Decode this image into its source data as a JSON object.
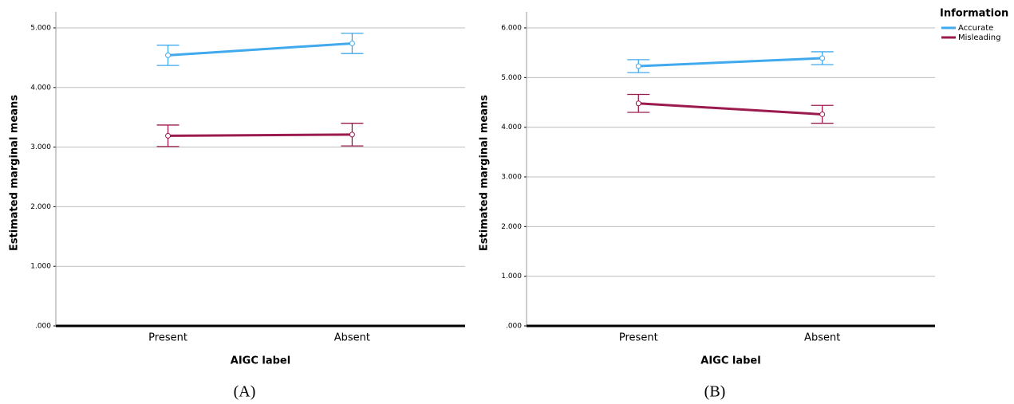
{
  "chart_data": [
    {
      "type": "line",
      "caption": "(A)",
      "x_label": "AIGC label",
      "y_label": "Estimated marginal means",
      "categories": [
        "Present",
        "Absent"
      ],
      "ylim": [
        0,
        5
      ],
      "yticks": [
        {
          "value": 0,
          "label": ".000"
        },
        {
          "value": 1,
          "label": "1.000"
        },
        {
          "value": 2,
          "label": "2.000"
        },
        {
          "value": 3,
          "label": "3.000"
        },
        {
          "value": 4,
          "label": "4.000"
        },
        {
          "value": 5,
          "label": "5.000"
        }
      ],
      "grid": true,
      "series": [
        {
          "name": "Accurate",
          "color": "#41a9ee",
          "values": [
            4.54,
            4.74
          ],
          "errors": [
            0.17,
            0.17
          ]
        },
        {
          "name": "Misleading",
          "color": "#9b1b4e",
          "values": [
            3.19,
            3.21
          ],
          "errors": [
            0.18,
            0.19
          ]
        }
      ]
    },
    {
      "type": "line",
      "caption": "(B)",
      "x_label": "AIGC label",
      "y_label": "Estimated marginal means",
      "categories": [
        "Present",
        "Absent"
      ],
      "ylim": [
        0,
        6
      ],
      "yticks": [
        {
          "value": 0,
          "label": ".000"
        },
        {
          "value": 1,
          "label": "1.000"
        },
        {
          "value": 2,
          "label": "2.000"
        },
        {
          "value": 3,
          "label": "3.000"
        },
        {
          "value": 4,
          "label": "4.000"
        },
        {
          "value": 5,
          "label": "5.000"
        },
        {
          "value": 6,
          "label": "6.000"
        }
      ],
      "grid": true,
      "legend": "top-right",
      "legend_title": "Information",
      "series": [
        {
          "name": "Accurate",
          "color": "#41a9ee",
          "values": [
            5.23,
            5.39
          ],
          "errors": [
            0.13,
            0.13
          ]
        },
        {
          "name": "Misleading",
          "color": "#9b1b4e",
          "values": [
            4.48,
            4.26
          ],
          "errors": [
            0.18,
            0.18
          ]
        }
      ]
    }
  ]
}
